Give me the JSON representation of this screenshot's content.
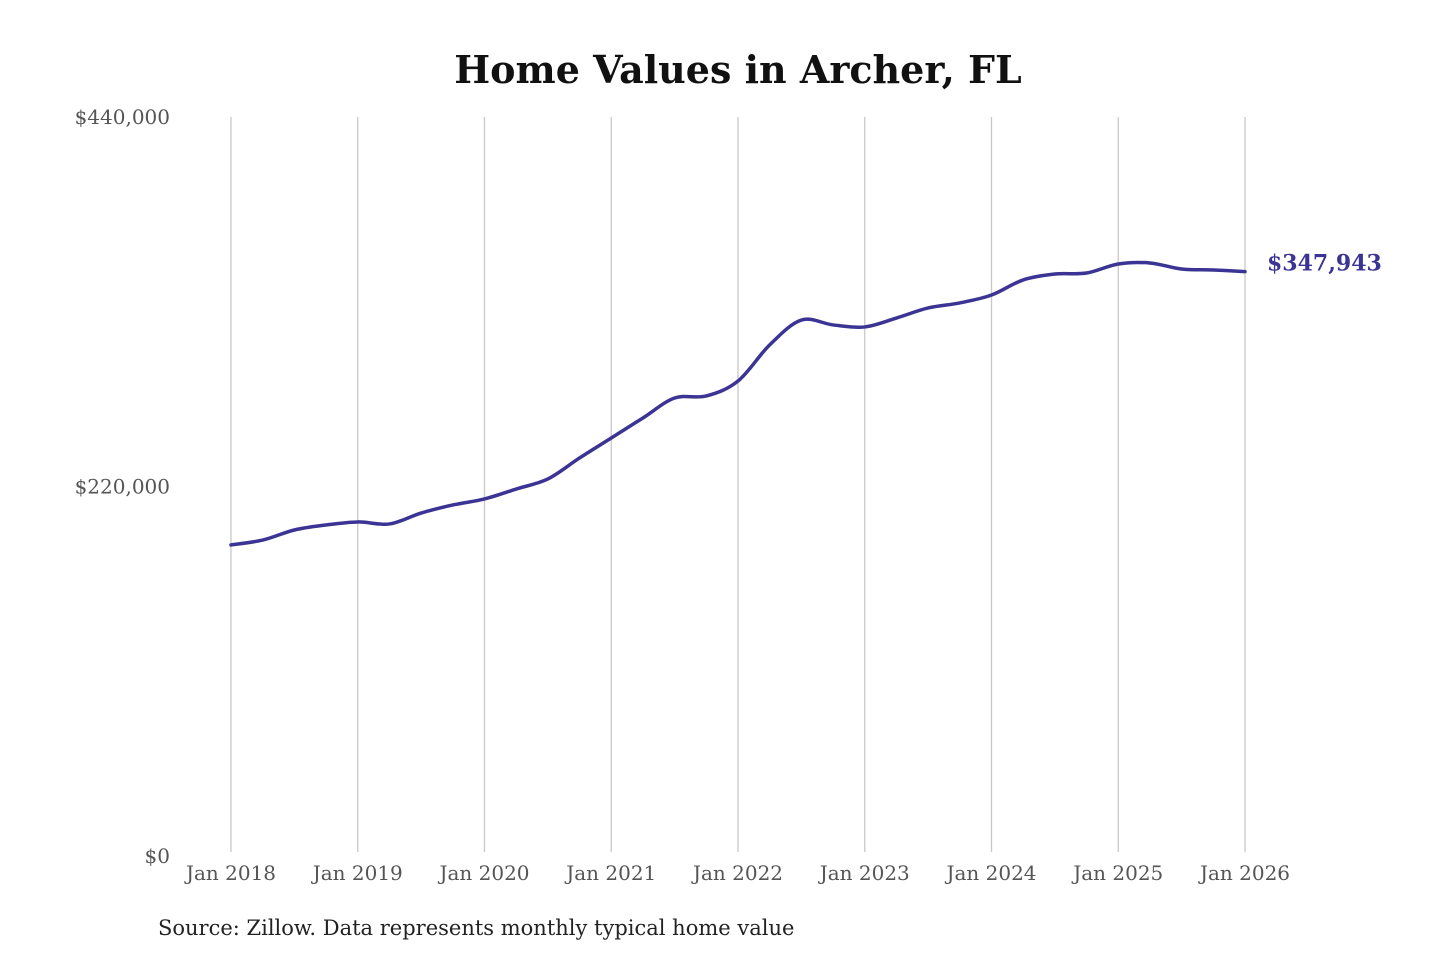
{
  "chart_data": {
    "type": "line",
    "title": "Home Values in Archer, FL",
    "xlabel": "",
    "ylabel": "",
    "ylim": [
      0,
      440000
    ],
    "y_ticks": [
      0,
      220000,
      440000
    ],
    "y_tick_labels": [
      "$0",
      "$220,000",
      "$440,000"
    ],
    "x_ticks": [
      "2018-01",
      "2019-01",
      "2020-01",
      "2021-01",
      "2022-01",
      "2023-01",
      "2024-01",
      "2025-01",
      "2026-01"
    ],
    "x_tick_labels": [
      "Jan 2018",
      "Jan 2019",
      "Jan 2020",
      "Jan 2021",
      "Jan 2022",
      "Jan 2023",
      "Jan 2024",
      "Jan 2025",
      "Jan 2026"
    ],
    "grid": "vertical",
    "line_color": "#3b3494",
    "end_label": "$347,943",
    "series": [
      {
        "x": [
          "2018-01",
          "2018-04",
          "2018-07",
          "2018-10",
          "2019-01",
          "2019-04",
          "2019-07",
          "2019-10",
          "2020-01",
          "2020-04",
          "2020-07",
          "2020-10",
          "2021-01",
          "2021-04",
          "2021-07",
          "2021-10",
          "2022-01",
          "2022-04",
          "2022-07",
          "2022-10",
          "2023-01",
          "2023-04",
          "2023-07",
          "2023-10",
          "2024-01",
          "2024-04",
          "2024-07",
          "2024-10",
          "2025-01",
          "2025-04",
          "2025-07",
          "2025-10",
          "2026-01"
        ],
        "values": [
          185200,
          188100,
          194100,
          197100,
          198900,
          197700,
          204200,
          209000,
          212600,
          218500,
          224500,
          237000,
          248900,
          260800,
          272700,
          273900,
          282800,
          304300,
          319100,
          316200,
          315000,
          320300,
          326300,
          329300,
          334000,
          343000,
          346500,
          347100,
          352500,
          353100,
          349500,
          348900,
          347943
        ]
      }
    ]
  },
  "source": "Source: Zillow. Data represents monthly typical home value"
}
